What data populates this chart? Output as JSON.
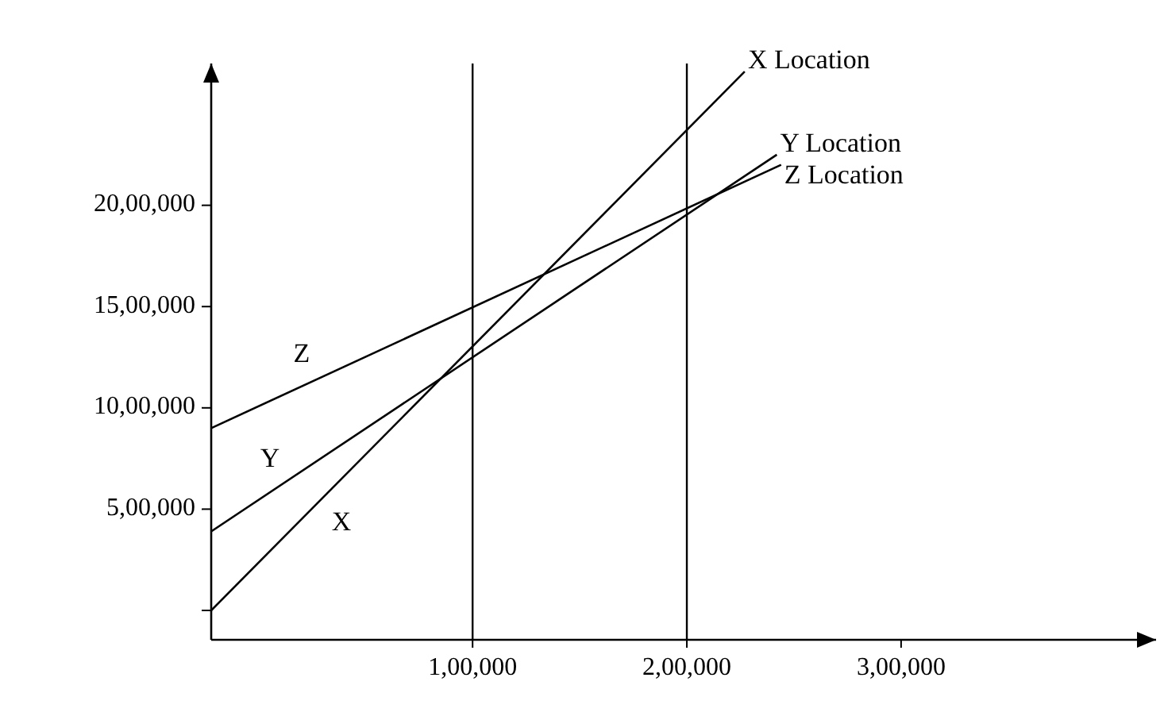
{
  "chart_data": {
    "type": "line",
    "xlim": [
      -22000,
      419000
    ],
    "ylim": [
      -145000,
      2700000
    ],
    "xticks": [
      {
        "value": 100000,
        "label": "1,00,000"
      },
      {
        "value": 200000,
        "label": "2,00,000"
      },
      {
        "value": 300000,
        "label": "3,00,000"
      }
    ],
    "yticks": [
      {
        "value": 0,
        "label": null
      },
      {
        "value": 500000,
        "label": "5,00,000"
      },
      {
        "value": 1000000,
        "label": "10,00,000"
      },
      {
        "value": 1500000,
        "label": "15,00,000"
      },
      {
        "value": 2000000,
        "label": "20,00,000"
      }
    ],
    "series": [
      {
        "name": "X Location",
        "color": "#000000",
        "x": [
          -22000,
          227000
        ],
        "values": [
          0,
          2660000
        ]
      },
      {
        "name": "Y Location",
        "color": "#000000",
        "x": [
          -22000,
          242000
        ],
        "values": [
          390000,
          2250000
        ]
      },
      {
        "name": "Z Location",
        "color": "#000000",
        "x": [
          -22000,
          244000
        ],
        "values": [
          900000,
          2200000
        ]
      }
    ],
    "ref_lines": [
      {
        "axis": "x",
        "value": 100000,
        "color": "#000000"
      },
      {
        "axis": "x",
        "value": 200000,
        "color": "#000000"
      }
    ],
    "annotations": [
      "Z",
      "Y",
      "X"
    ],
    "grid": false,
    "marker": "none",
    "line_style": "solid"
  }
}
